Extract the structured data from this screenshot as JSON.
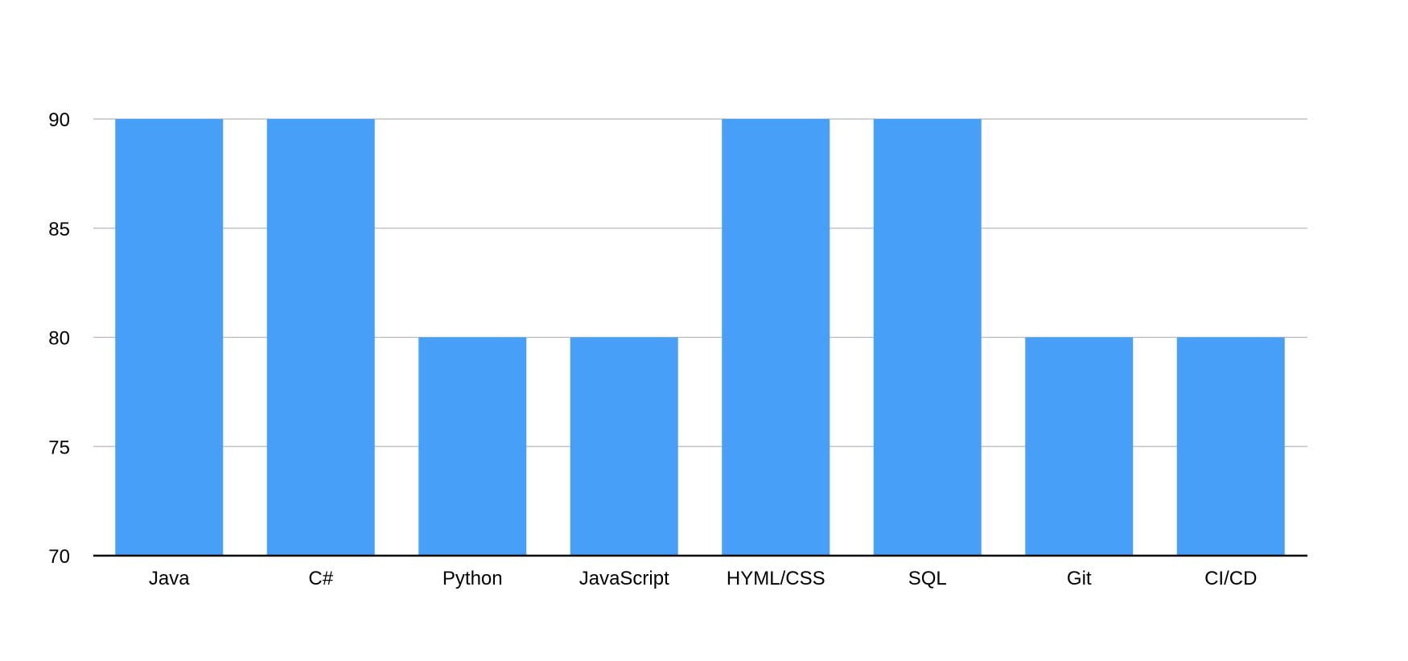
{
  "chart_data": {
    "type": "bar",
    "title": "",
    "xlabel": "",
    "ylabel": "",
    "categories": [
      "Java",
      "C#",
      "Python",
      "JavaScript",
      "HYML/CSS",
      "SQL",
      "Git",
      "CI/CD"
    ],
    "values": [
      90,
      90,
      80,
      80,
      90,
      90,
      80,
      80
    ],
    "ylim": [
      70,
      90
    ],
    "yticks": [
      "70",
      "75",
      "80",
      "85",
      "90"
    ],
    "grid": true,
    "legend": "none",
    "colors": {
      "bar": "#479ff8",
      "grid": "#b8b8b8",
      "axis": "#000000"
    }
  }
}
